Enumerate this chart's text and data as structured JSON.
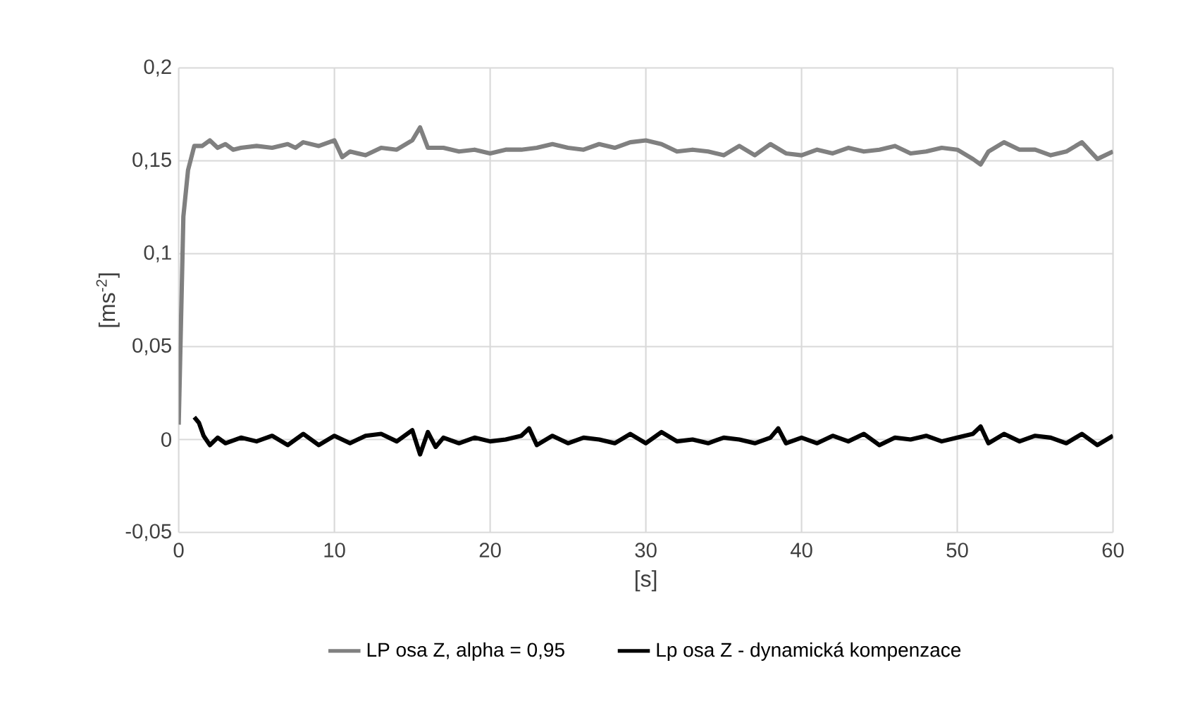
{
  "chart_data": {
    "type": "line",
    "xlabel": "[s]",
    "ylabel": "[ms$^{-2}$]",
    "xlim": [
      0,
      60
    ],
    "ylim": [
      -0.05,
      0.2
    ],
    "xticks": [
      0,
      10,
      20,
      30,
      40,
      50,
      60
    ],
    "yticks": [
      {
        "value": -0.05,
        "label": "-0,05"
      },
      {
        "value": 0,
        "label": "0"
      },
      {
        "value": 0.05,
        "label": "0,05"
      },
      {
        "value": 0.1,
        "label": "0,1"
      },
      {
        "value": 0.15,
        "label": "0,15"
      },
      {
        "value": 0.2,
        "label": "0,2"
      }
    ],
    "grid": true,
    "legend": "bottom",
    "marker": "none",
    "line_style": "solid",
    "series": [
      {
        "name": "LP osa Z, alpha = 0,95",
        "color": "#808080",
        "x": [
          0,
          0.3,
          0.6,
          1,
          1.5,
          2,
          2.5,
          3,
          3.5,
          4,
          5,
          6,
          7,
          7.5,
          8,
          9,
          10,
          10.5,
          11,
          12,
          13,
          14,
          15,
          15.5,
          16,
          17,
          18,
          19,
          20,
          21,
          22,
          23,
          24,
          25,
          26,
          27,
          28,
          29,
          30,
          31,
          32,
          33,
          34,
          35,
          36,
          37,
          38,
          39,
          40,
          41,
          42,
          43,
          44,
          45,
          46,
          47,
          48,
          49,
          50,
          51,
          51.5,
          52,
          53,
          54,
          55,
          56,
          57,
          58,
          59,
          60
        ],
        "values": [
          0.008,
          0.12,
          0.145,
          0.158,
          0.158,
          0.161,
          0.157,
          0.159,
          0.156,
          0.157,
          0.158,
          0.157,
          0.159,
          0.157,
          0.16,
          0.158,
          0.161,
          0.152,
          0.155,
          0.153,
          0.157,
          0.156,
          0.161,
          0.168,
          0.157,
          0.157,
          0.155,
          0.156,
          0.154,
          0.156,
          0.156,
          0.157,
          0.159,
          0.157,
          0.156,
          0.159,
          0.157,
          0.16,
          0.161,
          0.159,
          0.155,
          0.156,
          0.155,
          0.153,
          0.158,
          0.153,
          0.159,
          0.154,
          0.153,
          0.156,
          0.154,
          0.157,
          0.155,
          0.156,
          0.158,
          0.154,
          0.155,
          0.157,
          0.156,
          0.151,
          0.148,
          0.155,
          0.16,
          0.156,
          0.156,
          0.153,
          0.155,
          0.16,
          0.151,
          0.155
        ]
      },
      {
        "name": "Lp osa Z - dynamická kompenzace",
        "color": "#000000",
        "x": [
          1,
          1.3,
          1.6,
          2,
          2.5,
          3,
          4,
          5,
          6,
          7,
          8,
          9,
          10,
          11,
          12,
          13,
          14,
          15,
          15.5,
          16,
          16.5,
          17,
          18,
          19,
          20,
          21,
          22,
          22.5,
          23,
          24,
          25,
          26,
          27,
          28,
          29,
          30,
          31,
          32,
          33,
          34,
          35,
          36,
          37,
          38,
          38.5,
          39,
          40,
          41,
          42,
          43,
          44,
          45,
          46,
          47,
          48,
          49,
          50,
          51,
          51.5,
          52,
          53,
          54,
          55,
          56,
          57,
          58,
          59,
          60
        ],
        "values": [
          0.012,
          0.009,
          0.002,
          -0.003,
          0.001,
          -0.002,
          0.001,
          -0.001,
          0.002,
          -0.003,
          0.003,
          -0.003,
          0.002,
          -0.002,
          0.002,
          0.003,
          -0.001,
          0.005,
          -0.008,
          0.004,
          -0.004,
          0.001,
          -0.002,
          0.001,
          -0.001,
          0.0,
          0.002,
          0.006,
          -0.003,
          0.002,
          -0.002,
          0.001,
          0.0,
          -0.002,
          0.003,
          -0.002,
          0.004,
          -0.001,
          0.0,
          -0.002,
          0.001,
          0.0,
          -0.002,
          0.001,
          0.006,
          -0.002,
          0.001,
          -0.002,
          0.002,
          -0.001,
          0.003,
          -0.003,
          0.001,
          0.0,
          0.002,
          -0.001,
          0.001,
          0.003,
          0.007,
          -0.002,
          0.003,
          -0.001,
          0.002,
          0.001,
          -0.002,
          0.003,
          -0.003,
          0.002
        ]
      }
    ]
  }
}
